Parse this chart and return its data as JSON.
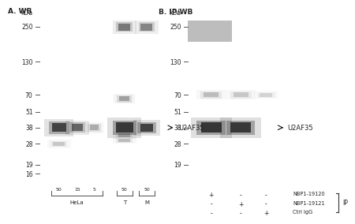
{
  "bg_color": "#ffffff",
  "panel_a_bg": "#f0efed",
  "panel_b_bg": "#eeede8",
  "title_a": "A. WB",
  "title_b": "B. IP/WB",
  "kda_label": "kDa",
  "mw_markers_a": [
    250,
    130,
    70,
    51,
    38,
    28,
    19,
    16
  ],
  "mw_markers_b": [
    250,
    130,
    70,
    51,
    38,
    28,
    19
  ],
  "u2af35_label": "U2AF35",
  "lanes_a_labels": [
    "50",
    "15",
    "5",
    "50",
    "50"
  ],
  "lanes_b_labels": [
    "NBP1-19120",
    "NBP1-19121",
    "Ctrl IgG"
  ],
  "ip_label": "IP",
  "text_color": "#222222",
  "font_size_title": 6.5,
  "font_size_mw": 5.5,
  "font_size_annot": 6.0
}
